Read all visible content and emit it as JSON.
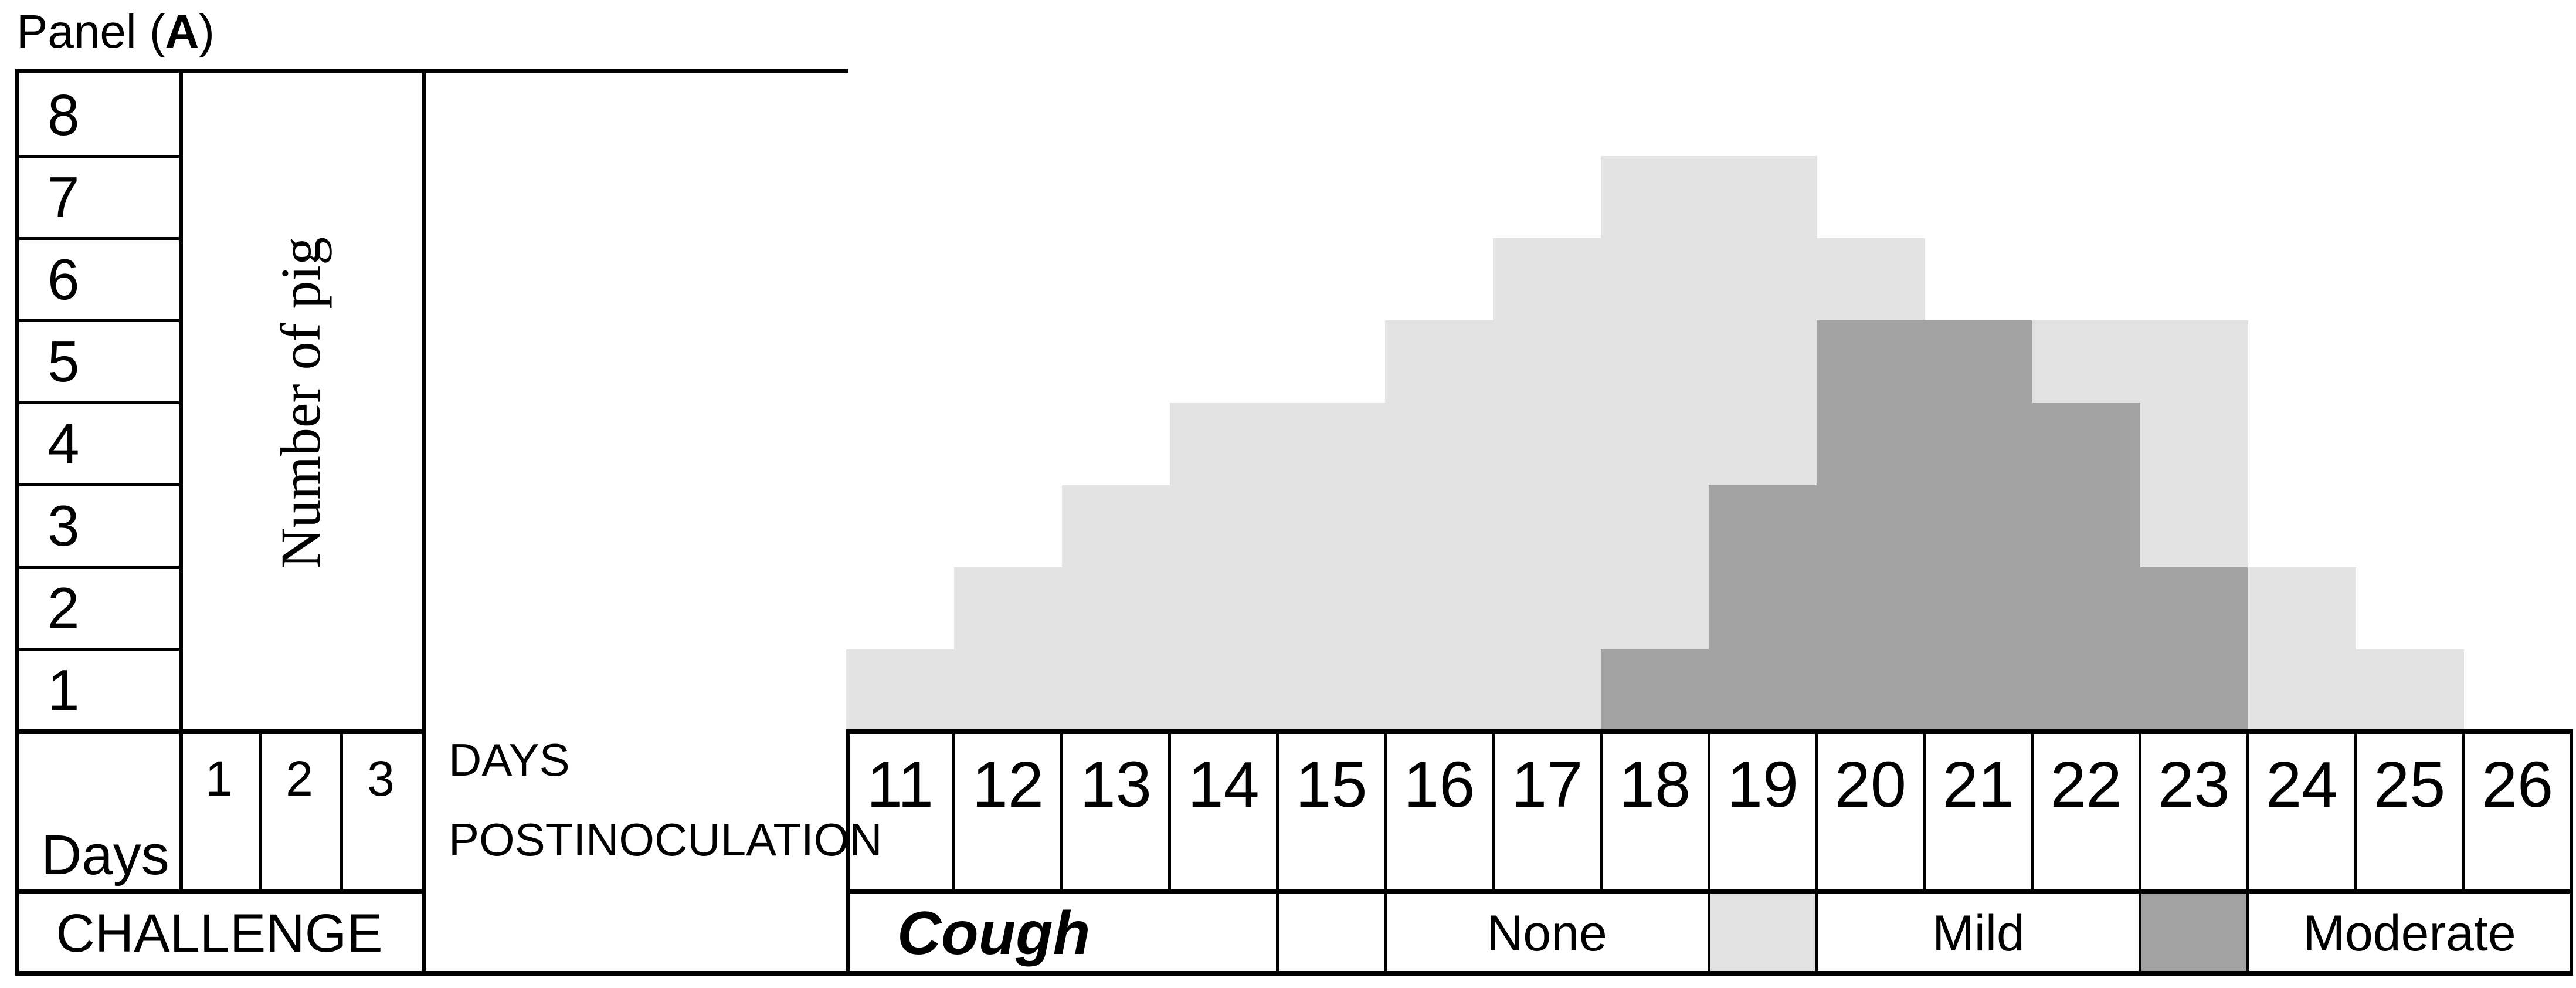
{
  "title": {
    "prefix": "Panel (",
    "panel_letter": "A",
    "suffix": ")"
  },
  "left_table": {
    "pig_counts": [
      "8",
      "7",
      "6",
      "5",
      "4",
      "3",
      "2",
      "1"
    ],
    "axis_label": "Number of pig",
    "days_label": "Days",
    "challenge_day_columns": [
      "1",
      "2",
      "3"
    ],
    "challenge_label": "CHALLENGE"
  },
  "x_axis": {
    "label_line1": "DAYS",
    "label_line2": "POSTINOCULATION",
    "days": [
      "11",
      "12",
      "13",
      "14",
      "15",
      "16",
      "17",
      "18",
      "19",
      "20",
      "21",
      "22",
      "23",
      "24",
      "25",
      "26"
    ]
  },
  "legend": {
    "cough_label": "Cough",
    "none_label": "None",
    "mild_label": "Mild",
    "moderate_label": "Moderate"
  },
  "colors": {
    "mild": "#e3e3e3",
    "moderate": "#a2a2a2",
    "line": "#000000",
    "background": "#ffffff"
  },
  "chart_data": {
    "type": "bar",
    "stacked": true,
    "categories": [
      11,
      12,
      13,
      14,
      15,
      16,
      17,
      18,
      19,
      20,
      21,
      22,
      23,
      24,
      25,
      26
    ],
    "series": [
      {
        "name": "Moderate",
        "color": "#a2a2a2",
        "stack_position": "bottom",
        "values": [
          0,
          0,
          0,
          0,
          0,
          0,
          0,
          1,
          3,
          5,
          5,
          4,
          2,
          0,
          0,
          0
        ]
      },
      {
        "name": "Mild",
        "color": "#e3e3e3",
        "stack_position": "top",
        "values": [
          1,
          2,
          3,
          4,
          4,
          5,
          6,
          6,
          4,
          1,
          0,
          1,
          3,
          2,
          1,
          0
        ]
      }
    ],
    "xlabel": "DAYS POSTINOCULATION",
    "ylabel": "Number of pig",
    "ylim": [
      0,
      8
    ],
    "grid": false,
    "legend_position": "bottom",
    "legend_categories": [
      "None",
      "Mild",
      "Moderate"
    ],
    "annotation": "Cough",
    "challenge_days": [
      1,
      2,
      3
    ]
  }
}
